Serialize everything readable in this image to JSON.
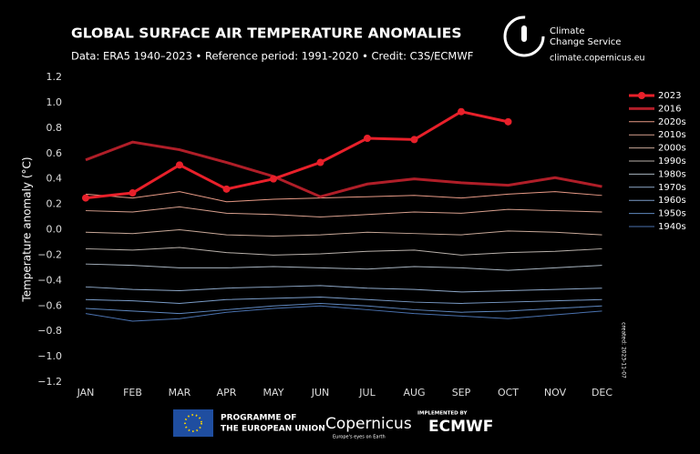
{
  "chart_data": {
    "type": "line",
    "title": "GLOBAL SURFACE AIR TEMPERATURE ANOMALIES",
    "subtitle": "Data: ERA5 1940–2023 • Reference period: 1991-2020 • Credit: C3S/ECMWF",
    "y_label": "Temperature anomaly (°C)",
    "note": "created: 2023-11-07",
    "categories": [
      "JAN",
      "FEB",
      "MAR",
      "APR",
      "MAY",
      "JUN",
      "JUL",
      "AUG",
      "SEP",
      "OCT",
      "NOV",
      "DEC"
    ],
    "ylim": [
      -1.2,
      1.2
    ],
    "yticks": [
      {
        "value": 1.2,
        "label": "1.2"
      },
      {
        "value": 1.0,
        "label": "1.0"
      },
      {
        "value": 0.8,
        "label": "0.8"
      },
      {
        "value": 0.6,
        "label": "0.6"
      },
      {
        "value": 0.4,
        "label": "0.4"
      },
      {
        "value": 0.2,
        "label": "0.2"
      },
      {
        "value": 0,
        "label": "0.0"
      },
      {
        "value": -0.2,
        "label": "−0.2"
      },
      {
        "value": -0.4,
        "label": "−0.4"
      },
      {
        "value": -0.6,
        "label": "−0.6"
      },
      {
        "value": -0.8,
        "label": "−0.8"
      },
      {
        "value": -1.0,
        "label": "−1.0"
      },
      {
        "value": -1.2,
        "label": "−1.2"
      }
    ],
    "legend": "right",
    "series": [
      {
        "name": "2023",
        "color": "#e8202a",
        "markers": true,
        "width": 3,
        "values": [
          0.25,
          0.29,
          0.51,
          0.32,
          0.4,
          0.53,
          0.72,
          0.71,
          0.93,
          0.85,
          null,
          null
        ]
      },
      {
        "name": "2016",
        "color": "#b01e28",
        "markers": false,
        "width": 3,
        "values": [
          0.55,
          0.69,
          0.63,
          0.53,
          0.42,
          0.26,
          0.36,
          0.4,
          0.37,
          0.35,
          0.41,
          0.34
        ]
      },
      {
        "name": "2020s",
        "color": "#e89a86",
        "markers": false,
        "width": 1,
        "values": [
          0.28,
          0.25,
          0.3,
          0.22,
          0.24,
          0.25,
          0.26,
          0.27,
          0.25,
          0.28,
          0.3,
          0.27
        ]
      },
      {
        "name": "2010s",
        "color": "#d8a08e",
        "markers": false,
        "width": 1,
        "values": [
          0.15,
          0.14,
          0.18,
          0.13,
          0.12,
          0.1,
          0.12,
          0.14,
          0.13,
          0.16,
          0.15,
          0.14
        ]
      },
      {
        "name": "2000s",
        "color": "#c8a898",
        "markers": false,
        "width": 1,
        "values": [
          -0.02,
          -0.03,
          0.0,
          -0.04,
          -0.05,
          -0.04,
          -0.02,
          -0.03,
          -0.04,
          -0.01,
          -0.02,
          -0.04
        ]
      },
      {
        "name": "1990s",
        "color": "#b8b0aa",
        "markers": false,
        "width": 1,
        "values": [
          -0.15,
          -0.16,
          -0.14,
          -0.18,
          -0.2,
          -0.19,
          -0.17,
          -0.16,
          -0.2,
          -0.18,
          -0.17,
          -0.15
        ]
      },
      {
        "name": "1980s",
        "color": "#a8b4c0",
        "markers": false,
        "width": 1,
        "values": [
          -0.27,
          -0.28,
          -0.3,
          -0.3,
          -0.29,
          -0.3,
          -0.31,
          -0.29,
          -0.3,
          -0.32,
          -0.3,
          -0.28
        ]
      },
      {
        "name": "1970s",
        "color": "#8ea8c8",
        "markers": false,
        "width": 1,
        "values": [
          -0.45,
          -0.47,
          -0.48,
          -0.46,
          -0.45,
          -0.44,
          -0.46,
          -0.47,
          -0.49,
          -0.48,
          -0.47,
          -0.46
        ]
      },
      {
        "name": "1960s",
        "color": "#7a9cc8",
        "markers": false,
        "width": 1,
        "values": [
          -0.55,
          -0.56,
          -0.58,
          -0.55,
          -0.54,
          -0.53,
          -0.55,
          -0.57,
          -0.58,
          -0.57,
          -0.56,
          -0.55
        ]
      },
      {
        "name": "1950s",
        "color": "#5f88c0",
        "markers": false,
        "width": 1,
        "values": [
          -0.62,
          -0.64,
          -0.66,
          -0.63,
          -0.6,
          -0.58,
          -0.6,
          -0.63,
          -0.65,
          -0.64,
          -0.62,
          -0.6
        ]
      },
      {
        "name": "1940s",
        "color": "#4a72b0",
        "markers": false,
        "width": 1,
        "values": [
          -0.66,
          -0.72,
          -0.7,
          -0.65,
          -0.62,
          -0.6,
          -0.63,
          -0.66,
          -0.68,
          -0.7,
          -0.67,
          -0.64
        ]
      }
    ]
  },
  "branding": {
    "service": [
      "Climate",
      "Change Service"
    ],
    "url": "climate.copernicus.eu",
    "eu": [
      "PROGRAMME OF",
      "THE EUROPEAN UNION"
    ],
    "copernicus": "Copernicus",
    "copernicus_tag": "Europe's eyes on Earth",
    "implemented": "IMPLEMENTED BY",
    "ecmwf": "ECMWF"
  }
}
